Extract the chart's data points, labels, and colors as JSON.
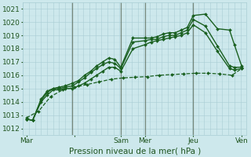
{
  "xlabel": "Pression niveau de la mer( hPa )",
  "bg_color": "#cde8ec",
  "grid_color": "#a8cdd4",
  "line_color": "#1a6020",
  "vline_color": "#607060",
  "ylim": [
    1011.5,
    1021.5
  ],
  "yticks": [
    1012,
    1013,
    1014,
    1015,
    1016,
    1017,
    1018,
    1019,
    1020,
    1021
  ],
  "xlim": [
    0,
    18.5
  ],
  "day_positions": [
    0.3,
    4.3,
    8.1,
    10.1,
    14.1,
    18.1
  ],
  "day_labels": [
    "Mar",
    "",
    "Sam",
    "Mer",
    "Jeu",
    "Ven"
  ],
  "vlines": [
    4.1,
    8.1,
    10.1,
    14.1
  ],
  "series": [
    {
      "x": [
        0.3,
        0.8,
        1.5,
        2.0,
        2.5,
        3.0,
        3.5,
        4.1,
        4.6,
        5.1,
        5.6,
        6.1,
        6.6,
        7.1,
        7.6,
        8.1,
        9.1,
        10.1,
        10.6,
        11.1,
        11.6,
        12.1,
        12.6,
        13.1,
        13.6,
        14.1,
        15.1,
        16.1,
        17.1,
        17.5,
        18.1
      ],
      "y": [
        1012.7,
        1012.6,
        1014.2,
        1014.8,
        1015.0,
        1015.1,
        1015.2,
        1015.4,
        1015.6,
        1016.0,
        1016.3,
        1016.7,
        1017.0,
        1017.3,
        1017.2,
        1016.6,
        1018.8,
        1018.8,
        1018.8,
        1018.9,
        1019.1,
        1019.2,
        1019.2,
        1019.4,
        1019.6,
        1020.5,
        1020.6,
        1019.5,
        1019.4,
        1018.3,
        1016.7
      ],
      "lw": 1.0
    },
    {
      "x": [
        0.3,
        0.8,
        1.5,
        2.0,
        2.5,
        3.0,
        3.5,
        4.1,
        4.6,
        5.1,
        5.6,
        6.1,
        6.6,
        7.1,
        7.6,
        8.1,
        9.1,
        10.1,
        10.6,
        11.1,
        11.6,
        12.1,
        12.6,
        13.1,
        13.6,
        14.1,
        15.1,
        16.1,
        17.1,
        17.5,
        18.1
      ],
      "y": [
        1012.7,
        1012.6,
        1014.1,
        1014.7,
        1015.0,
        1015.0,
        1015.1,
        1015.2,
        1015.5,
        1015.8,
        1016.2,
        1016.5,
        1016.8,
        1017.0,
        1016.9,
        1016.5,
        1018.5,
        1018.6,
        1018.7,
        1018.7,
        1018.9,
        1019.0,
        1019.0,
        1019.2,
        1019.4,
        1020.2,
        1019.7,
        1018.2,
        1016.7,
        1016.6,
        1016.6
      ],
      "lw": 1.0
    },
    {
      "x": [
        0.3,
        0.8,
        1.5,
        2.0,
        2.5,
        3.0,
        3.5,
        4.1,
        4.6,
        5.1,
        5.6,
        6.1,
        6.6,
        7.1,
        7.6,
        8.1,
        9.1,
        10.1,
        10.6,
        11.1,
        11.6,
        12.1,
        12.6,
        13.1,
        13.6,
        14.1,
        15.1,
        16.1,
        17.1,
        17.5,
        18.1
      ],
      "y": [
        1012.7,
        1012.6,
        1014.0,
        1014.5,
        1014.9,
        1014.9,
        1015.0,
        1015.0,
        1015.2,
        1015.4,
        1015.7,
        1016.0,
        1016.3,
        1016.6,
        1016.6,
        1016.3,
        1018.0,
        1018.3,
        1018.5,
        1018.6,
        1018.7,
        1018.8,
        1018.9,
        1019.0,
        1019.2,
        1019.8,
        1019.2,
        1017.8,
        1016.5,
        1016.4,
        1016.5
      ],
      "lw": 1.0
    },
    {
      "x": [
        0.3,
        1.3,
        2.3,
        3.3,
        4.3,
        5.3,
        6.3,
        7.3,
        8.3,
        9.3,
        10.3,
        11.3,
        12.3,
        13.3,
        14.3,
        15.3,
        16.3,
        17.3,
        18.1
      ],
      "y": [
        1012.8,
        1013.3,
        1014.4,
        1014.9,
        1015.1,
        1015.3,
        1015.5,
        1015.7,
        1015.8,
        1015.85,
        1015.9,
        1016.0,
        1016.05,
        1016.1,
        1016.15,
        1016.15,
        1016.1,
        1016.0,
        1016.5
      ],
      "lw": 0.9,
      "linestyle": "--"
    }
  ],
  "tick_label_color": "#205520",
  "xlabel_color": "#205520",
  "xlabel_fontsize": 7.5,
  "tick_fontsize": 6.5,
  "marker": "D",
  "markersize": 2.0
}
